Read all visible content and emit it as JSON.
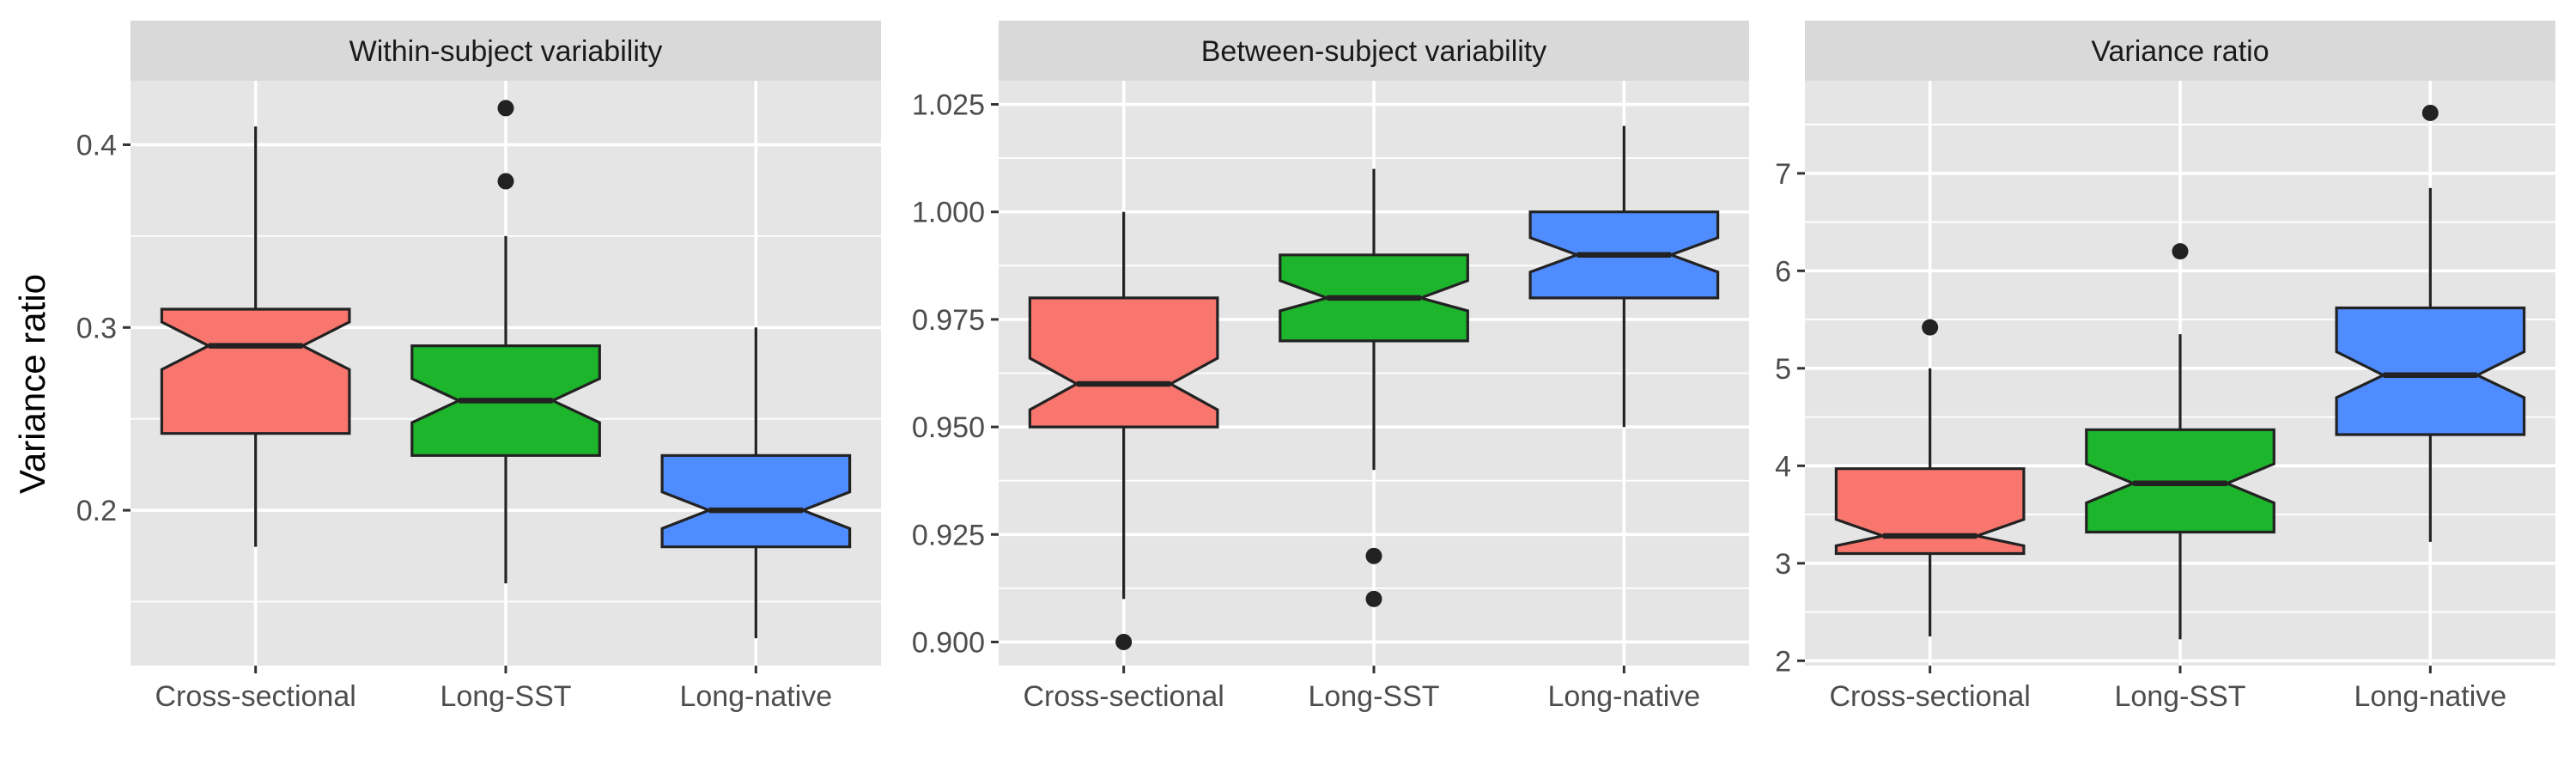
{
  "ylabel": "Variance ratio",
  "colors": {
    "Cross-sectional": "#F8766D",
    "Long-SST": "#1DB52C",
    "Long-native": "#4F8CFF",
    "panel_bg": "#E5E5E5",
    "strip_bg": "#D9D9D9",
    "grid": "#FFFFFF",
    "outline": "#222222"
  },
  "chart_data": [
    {
      "type": "boxplot",
      "notched": true,
      "title": "Within-subject variability",
      "categories": [
        "Cross-sectional",
        "Long-SST",
        "Long-native"
      ],
      "ylim": [
        0.115,
        0.435
      ],
      "yticks": [
        0.2,
        0.3,
        0.4
      ],
      "ytick_labels": [
        "0.2",
        "0.3",
        "0.4"
      ],
      "yminor": [
        0.15,
        0.25,
        0.35
      ],
      "boxes": [
        {
          "group": "Cross-sectional",
          "whisker_low": 0.18,
          "q1": 0.242,
          "median": 0.29,
          "q3": 0.31,
          "whisker_high": 0.41,
          "notch_low": 0.277,
          "notch_high": 0.303,
          "outliers": []
        },
        {
          "group": "Long-SST",
          "whisker_low": 0.16,
          "q1": 0.23,
          "median": 0.26,
          "q3": 0.29,
          "whisker_high": 0.35,
          "notch_low": 0.248,
          "notch_high": 0.272,
          "outliers": [
            0.38,
            0.42
          ]
        },
        {
          "group": "Long-native",
          "whisker_low": 0.13,
          "q1": 0.18,
          "median": 0.2,
          "q3": 0.23,
          "whisker_high": 0.3,
          "notch_low": 0.19,
          "notch_high": 0.21,
          "outliers": []
        }
      ]
    },
    {
      "type": "boxplot",
      "notched": true,
      "title": "Between-subject variability",
      "categories": [
        "Cross-sectional",
        "Long-SST",
        "Long-native"
      ],
      "ylim": [
        0.8945,
        1.0305
      ],
      "yticks": [
        0.9,
        0.925,
        0.95,
        0.975,
        1.0,
        1.025
      ],
      "ytick_labels": [
        "0.900",
        "0.925",
        "0.950",
        "0.975",
        "1.000",
        "1.025"
      ],
      "yminor": [
        0.9125,
        0.9375,
        0.9625,
        0.9875,
        1.0125
      ],
      "boxes": [
        {
          "group": "Cross-sectional",
          "whisker_low": 0.91,
          "q1": 0.95,
          "median": 0.96,
          "q3": 0.98,
          "whisker_high": 1.0,
          "notch_low": 0.954,
          "notch_high": 0.966,
          "outliers": [
            0.9
          ]
        },
        {
          "group": "Long-SST",
          "whisker_low": 0.94,
          "q1": 0.97,
          "median": 0.98,
          "q3": 0.99,
          "whisker_high": 1.01,
          "notch_low": 0.977,
          "notch_high": 0.984,
          "outliers": [
            0.92,
            0.91
          ]
        },
        {
          "group": "Long-native",
          "whisker_low": 0.95,
          "q1": 0.98,
          "median": 0.99,
          "q3": 1.0,
          "whisker_high": 1.02,
          "notch_low": 0.986,
          "notch_high": 0.994,
          "outliers": []
        }
      ]
    },
    {
      "type": "boxplot",
      "notched": true,
      "title": "Variance ratio",
      "categories": [
        "Cross-sectional",
        "Long-SST",
        "Long-native"
      ],
      "ylim": [
        1.95,
        7.95
      ],
      "yticks": [
        2,
        3,
        4,
        5,
        6,
        7
      ],
      "ytick_labels": [
        "2",
        "3",
        "4",
        "5",
        "6",
        "7"
      ],
      "yminor": [
        2.5,
        3.5,
        4.5,
        5.5,
        6.5,
        7.5
      ],
      "boxes": [
        {
          "group": "Cross-sectional",
          "whisker_low": 2.25,
          "q1": 3.1,
          "median": 3.28,
          "q3": 3.97,
          "whisker_high": 5.0,
          "notch_low": 3.18,
          "notch_high": 3.45,
          "outliers": [
            5.42
          ]
        },
        {
          "group": "Long-SST",
          "whisker_low": 2.22,
          "q1": 3.32,
          "median": 3.82,
          "q3": 4.37,
          "whisker_high": 5.35,
          "notch_low": 3.62,
          "notch_high": 4.02,
          "outliers": [
            6.2
          ]
        },
        {
          "group": "Long-native",
          "whisker_low": 3.22,
          "q1": 4.32,
          "median": 4.93,
          "q3": 5.62,
          "whisker_high": 6.85,
          "notch_low": 4.7,
          "notch_high": 5.17,
          "outliers": [
            7.62
          ]
        }
      ]
    }
  ]
}
